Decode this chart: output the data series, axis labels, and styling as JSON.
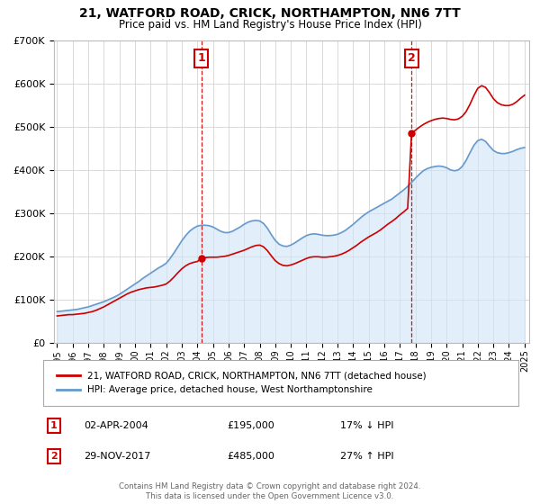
{
  "title": "21, WATFORD ROAD, CRICK, NORTHAMPTON, NN6 7TT",
  "subtitle": "Price paid vs. HM Land Registry's House Price Index (HPI)",
  "legend_label_red": "21, WATFORD ROAD, CRICK, NORTHAMPTON, NN6 7TT (detached house)",
  "legend_label_blue": "HPI: Average price, detached house, West Northamptonshire",
  "annotation1_label": "1",
  "annotation1_date": "02-APR-2004",
  "annotation1_price": "£195,000",
  "annotation1_hpi": "17% ↓ HPI",
  "annotation2_label": "2",
  "annotation2_date": "29-NOV-2017",
  "annotation2_price": "£485,000",
  "annotation2_hpi": "27% ↑ HPI",
  "footer": "Contains HM Land Registry data © Crown copyright and database right 2024.\nThis data is licensed under the Open Government Licence v3.0.",
  "red_color": "#cc0000",
  "blue_color": "#6699cc",
  "fill_color": "#d0e4f5",
  "vline_color": "#cc0000",
  "annotation_box_color": "#cc0000",
  "background_color": "#ffffff",
  "grid_color": "#cccccc",
  "hpi_x": [
    1995.0,
    1995.25,
    1995.5,
    1995.75,
    1996.0,
    1996.25,
    1996.5,
    1996.75,
    1997.0,
    1997.25,
    1997.5,
    1997.75,
    1998.0,
    1998.25,
    1998.5,
    1998.75,
    1999.0,
    1999.25,
    1999.5,
    1999.75,
    2000.0,
    2000.25,
    2000.5,
    2000.75,
    2001.0,
    2001.25,
    2001.5,
    2001.75,
    2002.0,
    2002.25,
    2002.5,
    2002.75,
    2003.0,
    2003.25,
    2003.5,
    2003.75,
    2004.0,
    2004.25,
    2004.5,
    2004.75,
    2005.0,
    2005.25,
    2005.5,
    2005.75,
    2006.0,
    2006.25,
    2006.5,
    2006.75,
    2007.0,
    2007.25,
    2007.5,
    2007.75,
    2008.0,
    2008.25,
    2008.5,
    2008.75,
    2009.0,
    2009.25,
    2009.5,
    2009.75,
    2010.0,
    2010.25,
    2010.5,
    2010.75,
    2011.0,
    2011.25,
    2011.5,
    2011.75,
    2012.0,
    2012.25,
    2012.5,
    2012.75,
    2013.0,
    2013.25,
    2013.5,
    2013.75,
    2014.0,
    2014.25,
    2014.5,
    2014.75,
    2015.0,
    2015.25,
    2015.5,
    2015.75,
    2016.0,
    2016.25,
    2016.5,
    2016.75,
    2017.0,
    2017.25,
    2017.5,
    2017.75,
    2018.0,
    2018.25,
    2018.5,
    2018.75,
    2019.0,
    2019.25,
    2019.5,
    2019.75,
    2020.0,
    2020.25,
    2020.5,
    2020.75,
    2021.0,
    2021.25,
    2021.5,
    2021.75,
    2022.0,
    2022.25,
    2022.5,
    2022.75,
    2023.0,
    2023.25,
    2023.5,
    2023.75,
    2024.0,
    2024.25,
    2024.5,
    2024.75,
    2025.0
  ],
  "hpi_y": [
    72000,
    73000,
    74000,
    75000,
    76000,
    77000,
    79000,
    81000,
    83000,
    86000,
    89000,
    92000,
    95000,
    99000,
    103000,
    107000,
    112000,
    118000,
    124000,
    130000,
    136000,
    142000,
    149000,
    155000,
    161000,
    167000,
    173000,
    178000,
    184000,
    195000,
    208000,
    222000,
    236000,
    248000,
    258000,
    265000,
    270000,
    272000,
    272000,
    271000,
    268000,
    263000,
    258000,
    255000,
    255000,
    258000,
    263000,
    268000,
    274000,
    279000,
    282000,
    283000,
    282000,
    276000,
    265000,
    250000,
    237000,
    228000,
    224000,
    223000,
    226000,
    231000,
    237000,
    243000,
    248000,
    251000,
    252000,
    251000,
    249000,
    248000,
    248000,
    249000,
    251000,
    255000,
    260000,
    267000,
    274000,
    282000,
    290000,
    297000,
    303000,
    308000,
    313000,
    318000,
    323000,
    328000,
    333000,
    340000,
    347000,
    354000,
    362000,
    371000,
    381000,
    390000,
    398000,
    403000,
    406000,
    408000,
    409000,
    408000,
    405000,
    400000,
    398000,
    400000,
    408000,
    422000,
    440000,
    457000,
    468000,
    471000,
    466000,
    455000,
    445000,
    440000,
    438000,
    438000,
    440000,
    443000,
    447000,
    450000,
    452000
  ],
  "red_x": [
    1995.0,
    1995.25,
    1995.5,
    1995.75,
    1996.0,
    1996.25,
    1996.5,
    1996.75,
    1997.0,
    1997.25,
    1997.5,
    1997.75,
    1998.0,
    1998.25,
    1998.5,
    1998.75,
    1999.0,
    1999.25,
    1999.5,
    1999.75,
    2000.0,
    2000.25,
    2000.5,
    2000.75,
    2001.0,
    2001.25,
    2001.5,
    2001.75,
    2002.0,
    2002.25,
    2002.5,
    2002.75,
    2003.0,
    2003.25,
    2003.5,
    2003.75,
    2004.0,
    2004.25,
    2004.5,
    2004.75,
    2005.0,
    2005.25,
    2005.5,
    2005.75,
    2006.0,
    2006.25,
    2006.5,
    2006.75,
    2007.0,
    2007.25,
    2007.5,
    2007.75,
    2008.0,
    2008.25,
    2008.5,
    2008.75,
    2009.0,
    2009.25,
    2009.5,
    2009.75,
    2010.0,
    2010.25,
    2010.5,
    2010.75,
    2011.0,
    2011.25,
    2011.5,
    2011.75,
    2012.0,
    2012.25,
    2012.5,
    2012.75,
    2013.0,
    2013.25,
    2013.5,
    2013.75,
    2014.0,
    2014.25,
    2014.5,
    2014.75,
    2015.0,
    2015.25,
    2015.5,
    2015.75,
    2016.0,
    2016.25,
    2016.5,
    2016.75,
    2017.0,
    2017.25,
    2017.5,
    2017.75,
    2018.0,
    2018.25,
    2018.5,
    2018.75,
    2019.0,
    2019.25,
    2019.5,
    2019.75,
    2020.0,
    2020.25,
    2020.5,
    2020.75,
    2021.0,
    2021.25,
    2021.5,
    2021.75,
    2022.0,
    2022.25,
    2022.5,
    2022.75,
    2023.0,
    2023.25,
    2023.5,
    2023.75,
    2024.0,
    2024.25,
    2024.5,
    2024.75,
    2025.0
  ],
  "red_y": [
    62000,
    63000,
    64000,
    65000,
    65000,
    66000,
    67000,
    68000,
    70000,
    72000,
    75000,
    79000,
    83000,
    88000,
    93000,
    98000,
    103000,
    108000,
    113000,
    117000,
    120000,
    123000,
    125000,
    127000,
    128000,
    129000,
    131000,
    133000,
    136000,
    143000,
    152000,
    162000,
    171000,
    178000,
    183000,
    186000,
    188000,
    195000,
    197000,
    198000,
    198000,
    198000,
    199000,
    200000,
    202000,
    205000,
    208000,
    211000,
    214000,
    218000,
    222000,
    225000,
    226000,
    222000,
    213000,
    201000,
    190000,
    183000,
    179000,
    178000,
    180000,
    183000,
    187000,
    191000,
    195000,
    198000,
    199000,
    199000,
    198000,
    198000,
    199000,
    200000,
    202000,
    205000,
    209000,
    214000,
    220000,
    226000,
    233000,
    239000,
    245000,
    250000,
    255000,
    261000,
    268000,
    275000,
    281000,
    288000,
    296000,
    303000,
    311000,
    485000,
    492000,
    499000,
    505000,
    510000,
    514000,
    517000,
    519000,
    520000,
    519000,
    517000,
    516000,
    518000,
    524000,
    535000,
    552000,
    572000,
    589000,
    595000,
    591000,
    579000,
    565000,
    556000,
    551000,
    549000,
    549000,
    552000,
    558000,
    566000,
    573000
  ],
  "purchase1_x": 2004.25,
  "purchase1_y": 195000,
  "purchase2_x": 2017.75,
  "purchase2_y": 485000,
  "vline1_x": 2004.25,
  "vline2_x": 2017.75,
  "ylim_max": 700000,
  "ylim_min": 0,
  "xlim_min": 1994.8,
  "xlim_max": 2025.3,
  "yticks": [
    0,
    100000,
    200000,
    300000,
    400000,
    500000,
    600000,
    700000
  ]
}
